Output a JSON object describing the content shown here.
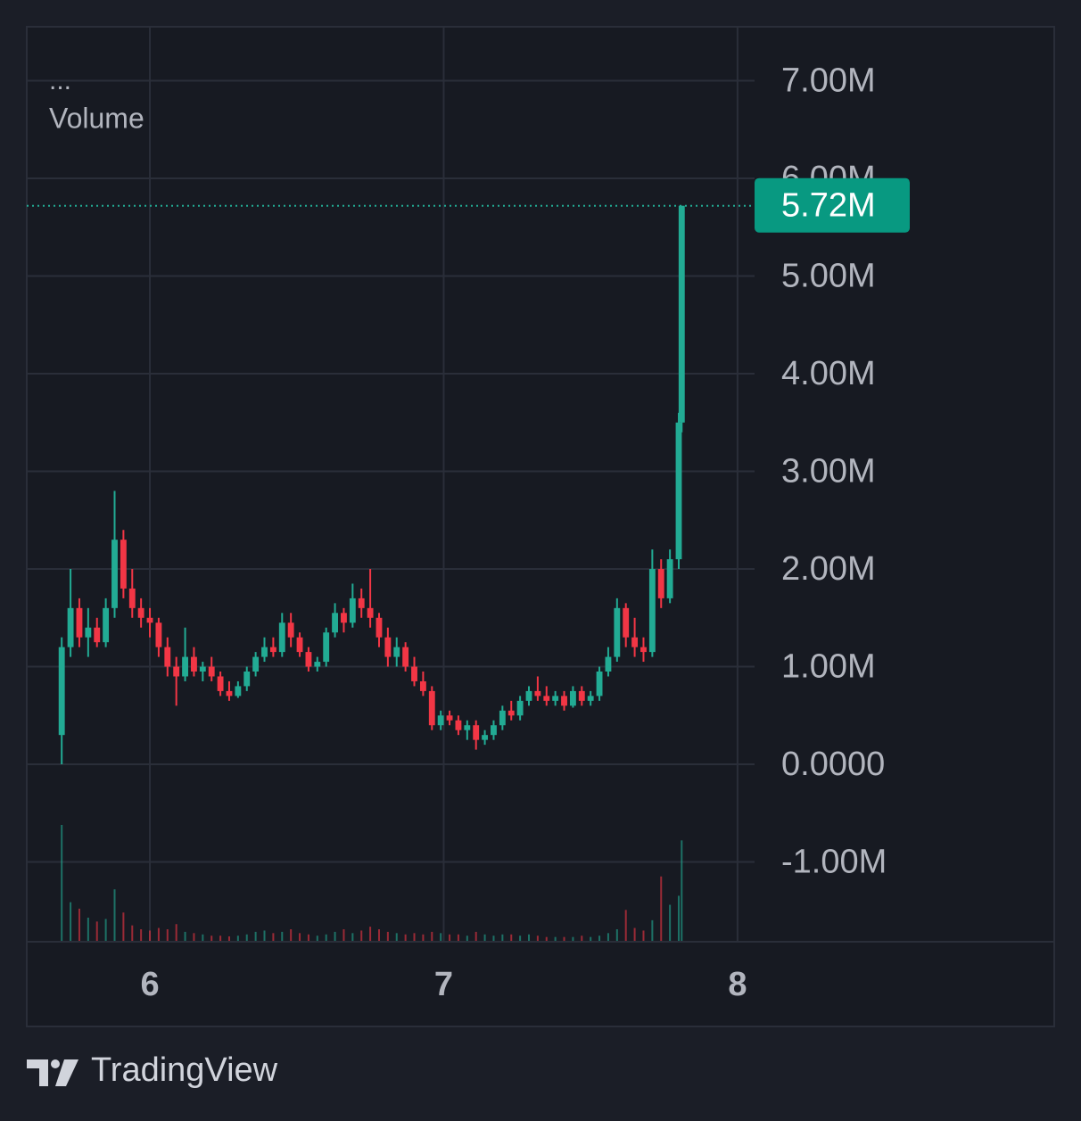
{
  "chart_data": {
    "type": "candlestick",
    "header": "...",
    "indicator": "Volume",
    "brand": "TradingView",
    "x": [
      5.7,
      5.73,
      5.76,
      5.79,
      5.82,
      5.85,
      5.88,
      5.91,
      5.94,
      5.97,
      6.0,
      6.03,
      6.06,
      6.09,
      6.12,
      6.15,
      6.18,
      6.21,
      6.24,
      6.27,
      6.3,
      6.33,
      6.36,
      6.39,
      6.42,
      6.45,
      6.48,
      6.51,
      6.54,
      6.57,
      6.6,
      6.63,
      6.66,
      6.69,
      6.72,
      6.75,
      6.78,
      6.81,
      6.84,
      6.87,
      6.9,
      6.93,
      6.96,
      6.99,
      7.02,
      7.05,
      7.08,
      7.11,
      7.14,
      7.17,
      7.2,
      7.23,
      7.26,
      7.29,
      7.32,
      7.35,
      7.38,
      7.41,
      7.44,
      7.47,
      7.5,
      7.53,
      7.56,
      7.59,
      7.62,
      7.65,
      7.68,
      7.71,
      7.74,
      7.77,
      7.8,
      7.81
    ],
    "open": [
      300000,
      1200000,
      1600000,
      1300000,
      1400000,
      1250000,
      1600000,
      2300000,
      1800000,
      1600000,
      1500000,
      1450000,
      1200000,
      1000000,
      900000,
      1100000,
      950000,
      1000000,
      900000,
      750000,
      700000,
      800000,
      950000,
      1100000,
      1200000,
      1150000,
      1450000,
      1300000,
      1150000,
      1000000,
      1050000,
      1350000,
      1550000,
      1450000,
      1700000,
      1600000,
      1500000,
      1300000,
      1100000,
      1200000,
      1000000,
      850000,
      750000,
      400000,
      500000,
      450000,
      350000,
      400000,
      250000,
      300000,
      400000,
      550000,
      500000,
      650000,
      750000,
      700000,
      650000,
      700000,
      600000,
      750000,
      650000,
      700000,
      950000,
      1100000,
      1600000,
      1300000,
      1200000,
      1150000,
      2000000,
      1700000,
      2100000,
      3500000
    ],
    "high": [
      1300000,
      2000000,
      1700000,
      1600000,
      1500000,
      1700000,
      2800000,
      2400000,
      2000000,
      1700000,
      1600000,
      1500000,
      1300000,
      1100000,
      1400000,
      1200000,
      1050000,
      1100000,
      950000,
      850000,
      850000,
      1000000,
      1150000,
      1300000,
      1300000,
      1550000,
      1550000,
      1350000,
      1200000,
      1100000,
      1400000,
      1650000,
      1600000,
      1850000,
      1800000,
      2000000,
      1550000,
      1400000,
      1300000,
      1250000,
      1100000,
      950000,
      800000,
      550000,
      550000,
      500000,
      450000,
      450000,
      350000,
      450000,
      600000,
      650000,
      700000,
      800000,
      900000,
      800000,
      750000,
      750000,
      800000,
      800000,
      750000,
      1000000,
      1200000,
      1700000,
      1650000,
      1500000,
      1300000,
      2200000,
      2100000,
      2200000,
      3600000,
      5720000
    ],
    "low": [
      0,
      1100000,
      1200000,
      1100000,
      1200000,
      1200000,
      1500000,
      1700000,
      1500000,
      1400000,
      1300000,
      1100000,
      900000,
      600000,
      850000,
      900000,
      850000,
      850000,
      700000,
      650000,
      680000,
      750000,
      900000,
      1050000,
      1100000,
      1100000,
      1200000,
      1100000,
      950000,
      950000,
      1000000,
      1300000,
      1350000,
      1400000,
      1500000,
      1400000,
      1200000,
      1000000,
      1000000,
      950000,
      800000,
      700000,
      350000,
      350000,
      400000,
      300000,
      250000,
      150000,
      200000,
      250000,
      350000,
      450000,
      450000,
      600000,
      650000,
      600000,
      600000,
      550000,
      580000,
      600000,
      600000,
      650000,
      900000,
      1050000,
      1200000,
      1100000,
      1050000,
      1100000,
      1600000,
      1650000,
      2000000,
      3400000
    ],
    "close": [
      1200000,
      1600000,
      1300000,
      1400000,
      1250000,
      1600000,
      2300000,
      1800000,
      1600000,
      1500000,
      1450000,
      1200000,
      1000000,
      900000,
      1100000,
      950000,
      1000000,
      900000,
      750000,
      700000,
      800000,
      950000,
      1100000,
      1200000,
      1150000,
      1450000,
      1300000,
      1150000,
      1000000,
      1050000,
      1350000,
      1550000,
      1450000,
      1700000,
      1600000,
      1500000,
      1300000,
      1100000,
      1200000,
      1000000,
      850000,
      750000,
      400000,
      500000,
      450000,
      350000,
      400000,
      250000,
      300000,
      400000,
      550000,
      500000,
      650000,
      750000,
      700000,
      650000,
      700000,
      600000,
      750000,
      650000,
      700000,
      950000,
      1100000,
      1600000,
      1300000,
      1200000,
      1150000,
      2000000,
      1700000,
      2100000,
      3500000,
      5720000
    ],
    "volume": [
      9000,
      3000,
      2500,
      1800,
      1500,
      1700,
      4000,
      2200,
      1200,
      900,
      800,
      1000,
      900,
      1300,
      700,
      600,
      500,
      400,
      400,
      350,
      400,
      500,
      700,
      800,
      600,
      700,
      900,
      600,
      500,
      400,
      500,
      700,
      900,
      600,
      800,
      1100,
      900,
      700,
      600,
      500,
      600,
      500,
      700,
      600,
      500,
      500,
      400,
      700,
      500,
      400,
      500,
      500,
      400,
      500,
      400,
      300,
      300,
      300,
      300,
      400,
      300,
      400,
      600,
      900,
      2400,
      1000,
      800,
      1600,
      5000,
      2800,
      3500,
      7800
    ],
    "up_color": "#22ab94",
    "down_color": "#f23645",
    "xlim": [
      5.581,
      8.058
    ],
    "xticks": [
      6,
      7,
      8
    ],
    "ylim": [
      -1808000,
      7553000
    ],
    "yticks": [
      {
        "value": -1000000,
        "label": "-1.00M"
      },
      {
        "value": 0,
        "label": "0.0000"
      },
      {
        "value": 1000000,
        "label": "1.00M"
      },
      {
        "value": 2000000,
        "label": "2.00M"
      },
      {
        "value": 3000000,
        "label": "3.00M"
      },
      {
        "value": 4000000,
        "label": "4.00M"
      },
      {
        "value": 5000000,
        "label": "5.00M"
      },
      {
        "value": 6000000,
        "label": "6.00M"
      },
      {
        "value": 7000000,
        "label": "7.00M"
      }
    ],
    "last_value": {
      "value": 5720000,
      "label": "5.72M"
    },
    "grid": true
  }
}
